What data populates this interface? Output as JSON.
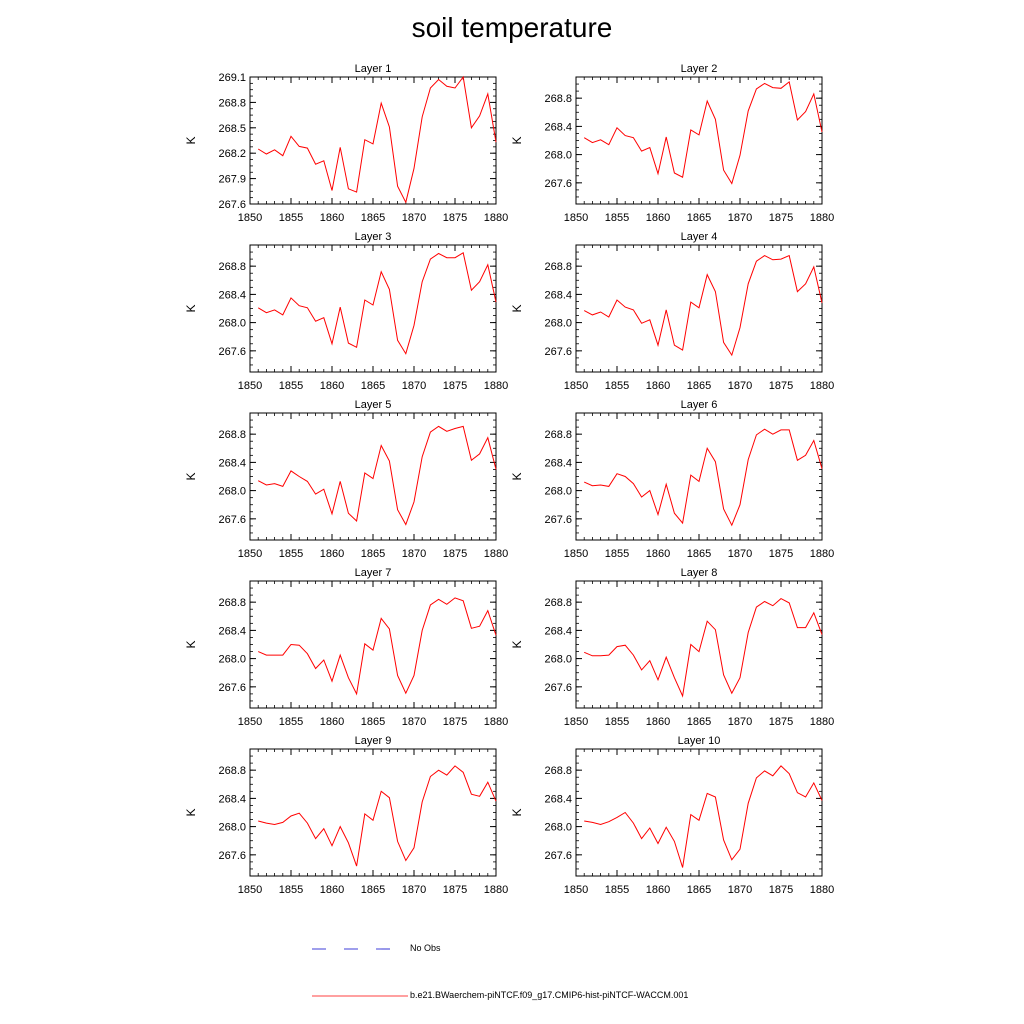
{
  "title": "soil temperature",
  "legend": {
    "obs_label": "No Obs",
    "model_label": "b.e21.BWaerchem-piNTCF.f09_g17.CMIP6-hist-piNTCF-WACCM.001",
    "model_color": "#ff0000",
    "obs_color": "#0000cc"
  },
  "chart_data": [
    {
      "type": "line",
      "title": "Layer 1",
      "xlabel": "",
      "ylabel": "K",
      "xlim": [
        1850,
        1880
      ],
      "ylim": [
        267.6,
        269.1
      ],
      "xticks": [
        1850,
        1855,
        1860,
        1865,
        1870,
        1875,
        1880
      ],
      "yticks": [
        "267.6",
        "267.9",
        "268.2",
        "268.5",
        "268.8",
        "269.1"
      ],
      "x": [
        1851,
        1852,
        1853,
        1854,
        1855,
        1856,
        1857,
        1858,
        1859,
        1860,
        1861,
        1862,
        1863,
        1864,
        1865,
        1866,
        1867,
        1868,
        1869,
        1870,
        1871,
        1872,
        1873,
        1874,
        1875,
        1876,
        1877,
        1878,
        1879,
        1880
      ],
      "values": [
        268.25,
        268.19,
        268.24,
        268.17,
        268.4,
        268.28,
        268.26,
        268.07,
        268.11,
        267.76,
        268.27,
        267.78,
        267.74,
        268.36,
        268.31,
        268.79,
        268.51,
        267.81,
        267.62,
        268.02,
        268.63,
        268.97,
        269.07,
        268.99,
        268.97,
        269.1,
        268.5,
        268.64,
        268.9,
        268.33
      ]
    },
    {
      "type": "line",
      "title": "Layer 2",
      "xlabel": "",
      "ylabel": "K",
      "xlim": [
        1850,
        1880
      ],
      "ylim": [
        267.3,
        269.1
      ],
      "xticks": [
        1850,
        1855,
        1860,
        1865,
        1870,
        1875,
        1880
      ],
      "yticks": [
        "267.6",
        "268.0",
        "268.4",
        "268.8"
      ],
      "x": [
        1851,
        1852,
        1853,
        1854,
        1855,
        1856,
        1857,
        1858,
        1859,
        1860,
        1861,
        1862,
        1863,
        1864,
        1865,
        1866,
        1867,
        1868,
        1869,
        1870,
        1871,
        1872,
        1873,
        1874,
        1875,
        1876,
        1877,
        1878,
        1879,
        1880
      ],
      "values": [
        268.24,
        268.17,
        268.21,
        268.14,
        268.38,
        268.27,
        268.24,
        268.05,
        268.1,
        267.73,
        268.25,
        267.74,
        267.68,
        268.35,
        268.28,
        268.76,
        268.5,
        267.78,
        267.59,
        267.99,
        268.62,
        268.93,
        269.01,
        268.95,
        268.94,
        269.03,
        268.49,
        268.61,
        268.86,
        268.32
      ]
    },
    {
      "type": "line",
      "title": "Layer 3",
      "xlabel": "",
      "ylabel": "K",
      "xlim": [
        1850,
        1880
      ],
      "ylim": [
        267.3,
        269.1
      ],
      "xticks": [
        1850,
        1855,
        1860,
        1865,
        1870,
        1875,
        1880
      ],
      "yticks": [
        "267.6",
        "268.0",
        "268.4",
        "268.8"
      ],
      "x": [
        1851,
        1852,
        1853,
        1854,
        1855,
        1856,
        1857,
        1858,
        1859,
        1860,
        1861,
        1862,
        1863,
        1864,
        1865,
        1866,
        1867,
        1868,
        1869,
        1870,
        1871,
        1872,
        1873,
        1874,
        1875,
        1876,
        1877,
        1878,
        1879,
        1880
      ],
      "values": [
        268.21,
        268.14,
        268.18,
        268.11,
        268.35,
        268.24,
        268.21,
        268.02,
        268.07,
        267.7,
        268.22,
        267.71,
        267.65,
        268.32,
        268.25,
        268.72,
        268.47,
        267.75,
        267.56,
        267.96,
        268.58,
        268.9,
        268.98,
        268.92,
        268.92,
        268.99,
        268.46,
        268.58,
        268.82,
        268.29
      ]
    },
    {
      "type": "line",
      "title": "Layer 4",
      "xlabel": "",
      "ylabel": "K",
      "xlim": [
        1850,
        1880
      ],
      "ylim": [
        267.3,
        269.1
      ],
      "xticks": [
        1850,
        1855,
        1860,
        1865,
        1870,
        1875,
        1880
      ],
      "yticks": [
        "267.6",
        "268.0",
        "268.4",
        "268.8"
      ],
      "x": [
        1851,
        1852,
        1853,
        1854,
        1855,
        1856,
        1857,
        1858,
        1859,
        1860,
        1861,
        1862,
        1863,
        1864,
        1865,
        1866,
        1867,
        1868,
        1869,
        1870,
        1871,
        1872,
        1873,
        1874,
        1875,
        1876,
        1877,
        1878,
        1879,
        1880
      ],
      "values": [
        268.17,
        268.11,
        268.15,
        268.08,
        268.32,
        268.22,
        268.18,
        267.99,
        268.04,
        267.68,
        268.18,
        267.68,
        267.61,
        268.29,
        268.21,
        268.68,
        268.44,
        267.72,
        267.54,
        267.93,
        268.55,
        268.87,
        268.95,
        268.89,
        268.9,
        268.95,
        268.44,
        268.55,
        268.79,
        268.28
      ]
    },
    {
      "type": "line",
      "title": "Layer 5",
      "xlabel": "",
      "ylabel": "K",
      "xlim": [
        1850,
        1880
      ],
      "ylim": [
        267.3,
        269.1
      ],
      "xticks": [
        1850,
        1855,
        1860,
        1865,
        1870,
        1875,
        1880
      ],
      "yticks": [
        "267.6",
        "268.0",
        "268.4",
        "268.8"
      ],
      "x": [
        1851,
        1852,
        1853,
        1854,
        1855,
        1856,
        1857,
        1858,
        1859,
        1860,
        1861,
        1862,
        1863,
        1864,
        1865,
        1866,
        1867,
        1868,
        1869,
        1870,
        1871,
        1872,
        1873,
        1874,
        1875,
        1876,
        1877,
        1878,
        1879,
        1880
      ],
      "values": [
        268.14,
        268.08,
        268.1,
        268.06,
        268.28,
        268.2,
        268.13,
        267.95,
        268.02,
        267.67,
        268.13,
        267.68,
        267.57,
        268.25,
        268.17,
        268.64,
        268.42,
        267.73,
        267.52,
        267.84,
        268.48,
        268.83,
        268.91,
        268.84,
        268.88,
        268.91,
        268.43,
        268.52,
        268.75,
        268.3
      ]
    },
    {
      "type": "line",
      "title": "Layer 6",
      "xlabel": "",
      "ylabel": "K",
      "xlim": [
        1850,
        1880
      ],
      "ylim": [
        267.3,
        269.1
      ],
      "xticks": [
        1850,
        1855,
        1860,
        1865,
        1870,
        1875,
        1880
      ],
      "yticks": [
        "267.6",
        "268.0",
        "268.4",
        "268.8"
      ],
      "x": [
        1851,
        1852,
        1853,
        1854,
        1855,
        1856,
        1857,
        1858,
        1859,
        1860,
        1861,
        1862,
        1863,
        1864,
        1865,
        1866,
        1867,
        1868,
        1869,
        1870,
        1871,
        1872,
        1873,
        1874,
        1875,
        1876,
        1877,
        1878,
        1879,
        1880
      ],
      "values": [
        268.12,
        268.07,
        268.08,
        268.06,
        268.24,
        268.2,
        268.1,
        267.91,
        268.0,
        267.66,
        268.09,
        267.68,
        267.54,
        268.22,
        268.13,
        268.6,
        268.41,
        267.74,
        267.51,
        267.8,
        268.44,
        268.79,
        268.87,
        268.8,
        268.86,
        268.86,
        268.43,
        268.5,
        268.71,
        268.31
      ]
    },
    {
      "type": "line",
      "title": "Layer 7",
      "xlabel": "",
      "ylabel": "K",
      "xlim": [
        1850,
        1880
      ],
      "ylim": [
        267.3,
        269.1
      ],
      "xticks": [
        1850,
        1855,
        1860,
        1865,
        1870,
        1875,
        1880
      ],
      "yticks": [
        "267.6",
        "268.0",
        "268.4",
        "268.8"
      ],
      "x": [
        1851,
        1852,
        1853,
        1854,
        1855,
        1856,
        1857,
        1858,
        1859,
        1860,
        1861,
        1862,
        1863,
        1864,
        1865,
        1866,
        1867,
        1868,
        1869,
        1870,
        1871,
        1872,
        1873,
        1874,
        1875,
        1876,
        1877,
        1878,
        1879,
        1880
      ],
      "values": [
        268.1,
        268.05,
        268.05,
        268.05,
        268.2,
        268.19,
        268.07,
        267.86,
        267.98,
        267.68,
        268.05,
        267.73,
        267.5,
        268.21,
        268.12,
        268.57,
        268.42,
        267.76,
        267.51,
        267.76,
        268.4,
        268.76,
        268.84,
        268.77,
        268.86,
        268.82,
        268.43,
        268.46,
        268.68,
        268.33
      ]
    },
    {
      "type": "line",
      "title": "Layer 8",
      "xlabel": "",
      "ylabel": "K",
      "xlim": [
        1850,
        1880
      ],
      "ylim": [
        267.3,
        269.1
      ],
      "xticks": [
        1850,
        1855,
        1860,
        1865,
        1870,
        1875,
        1880
      ],
      "yticks": [
        "267.6",
        "268.0",
        "268.4",
        "268.8"
      ],
      "x": [
        1851,
        1852,
        1853,
        1854,
        1855,
        1856,
        1857,
        1858,
        1859,
        1860,
        1861,
        1862,
        1863,
        1864,
        1865,
        1866,
        1867,
        1868,
        1869,
        1870,
        1871,
        1872,
        1873,
        1874,
        1875,
        1876,
        1877,
        1878,
        1879,
        1880
      ],
      "values": [
        268.09,
        268.04,
        268.04,
        268.05,
        268.17,
        268.19,
        268.05,
        267.84,
        267.97,
        267.7,
        268.02,
        267.73,
        267.47,
        268.2,
        268.1,
        268.53,
        268.41,
        267.77,
        267.51,
        267.73,
        268.37,
        268.73,
        268.81,
        268.75,
        268.85,
        268.79,
        268.44,
        268.44,
        268.65,
        268.34
      ]
    },
    {
      "type": "line",
      "title": "Layer 9",
      "xlabel": "",
      "ylabel": "K",
      "xlim": [
        1850,
        1880
      ],
      "ylim": [
        267.3,
        269.1
      ],
      "xticks": [
        1850,
        1855,
        1860,
        1865,
        1870,
        1875,
        1880
      ],
      "yticks": [
        "267.6",
        "268.0",
        "268.4",
        "268.8"
      ],
      "x": [
        1851,
        1852,
        1853,
        1854,
        1855,
        1856,
        1857,
        1858,
        1859,
        1860,
        1861,
        1862,
        1863,
        1864,
        1865,
        1866,
        1867,
        1868,
        1869,
        1870,
        1871,
        1872,
        1873,
        1874,
        1875,
        1876,
        1877,
        1878,
        1879,
        1880
      ],
      "values": [
        268.08,
        268.05,
        268.03,
        268.06,
        268.15,
        268.19,
        268.05,
        267.83,
        267.97,
        267.73,
        268.0,
        267.77,
        267.44,
        268.18,
        268.09,
        268.5,
        268.41,
        267.79,
        267.52,
        267.7,
        268.35,
        268.71,
        268.8,
        268.73,
        268.86,
        268.77,
        268.46,
        268.43,
        268.63,
        268.36
      ]
    },
    {
      "type": "line",
      "title": "Layer 10",
      "xlabel": "",
      "ylabel": "K",
      "xlim": [
        1850,
        1880
      ],
      "ylim": [
        267.3,
        269.1
      ],
      "xticks": [
        1850,
        1855,
        1860,
        1865,
        1870,
        1875,
        1880
      ],
      "yticks": [
        "267.6",
        "268.0",
        "268.4",
        "268.8"
      ],
      "x": [
        1851,
        1852,
        1853,
        1854,
        1855,
        1856,
        1857,
        1858,
        1859,
        1860,
        1861,
        1862,
        1863,
        1864,
        1865,
        1866,
        1867,
        1868,
        1869,
        1870,
        1871,
        1872,
        1873,
        1874,
        1875,
        1876,
        1877,
        1878,
        1879,
        1880
      ],
      "values": [
        268.08,
        268.06,
        268.03,
        268.07,
        268.13,
        268.2,
        268.05,
        267.83,
        267.98,
        267.76,
        267.99,
        267.79,
        267.42,
        268.17,
        268.09,
        268.47,
        268.42,
        267.81,
        267.53,
        267.68,
        268.33,
        268.69,
        268.79,
        268.72,
        268.86,
        268.75,
        268.48,
        268.42,
        268.62,
        268.37
      ]
    }
  ]
}
